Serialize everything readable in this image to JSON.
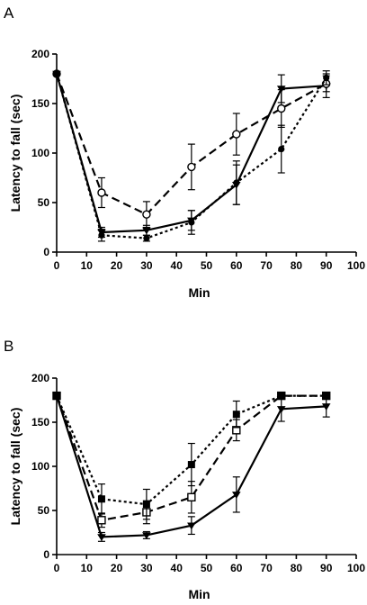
{
  "chart_data": [
    {
      "panel": "A",
      "type": "line",
      "xlabel": "Min",
      "ylabel": "Latency to fall (sec)",
      "xlim": [
        0,
        100
      ],
      "ylim": [
        0,
        200
      ],
      "xticks": [
        0,
        10,
        20,
        30,
        40,
        50,
        60,
        70,
        80,
        90,
        100
      ],
      "yticks": [
        0,
        50,
        100,
        150,
        200
      ],
      "grid": false,
      "series": [
        {
          "line_style": "solid",
          "marker": "triangle-down",
          "x": [
            0,
            15,
            30,
            45,
            60,
            75,
            90
          ],
          "y": [
            180,
            20,
            22,
            32,
            68,
            165,
            168
          ],
          "err": [
            0,
            5,
            5,
            10,
            20,
            14,
            12
          ]
        },
        {
          "line_style": "dashed",
          "marker": "circle-open",
          "x": [
            0,
            15,
            30,
            45,
            60,
            75,
            90
          ],
          "y": [
            180,
            60,
            38,
            86,
            119,
            145,
            170
          ],
          "err": [
            0,
            15,
            13,
            23,
            21,
            19,
            8
          ]
        },
        {
          "line_style": "dotted",
          "marker": "circle-filled",
          "x": [
            0,
            15,
            30,
            45,
            60,
            75,
            90
          ],
          "y": [
            180,
            17,
            14,
            30,
            70,
            104,
            176
          ],
          "err": [
            0,
            6,
            3,
            12,
            22,
            24,
            7
          ]
        }
      ]
    },
    {
      "panel": "B",
      "type": "line",
      "xlabel": "Min",
      "ylabel": "Latency to fall (sec)",
      "xlim": [
        0,
        100
      ],
      "ylim": [
        0,
        200
      ],
      "xticks": [
        0,
        10,
        20,
        30,
        40,
        50,
        60,
        70,
        80,
        90,
        100
      ],
      "yticks": [
        0,
        50,
        100,
        150,
        200
      ],
      "grid": false,
      "series": [
        {
          "line_style": "solid",
          "marker": "triangle-down",
          "x": [
            0,
            15,
            30,
            45,
            60,
            75,
            90
          ],
          "y": [
            180,
            20,
            22,
            33,
            68,
            165,
            168
          ],
          "err": [
            0,
            5,
            4,
            10,
            20,
            14,
            12
          ]
        },
        {
          "line_style": "dashed",
          "marker": "square-open",
          "x": [
            0,
            15,
            30,
            45,
            60,
            75,
            90
          ],
          "y": [
            180,
            39,
            48,
            65,
            141,
            180,
            180
          ],
          "err": [
            0,
            8,
            13,
            18,
            12,
            0,
            0
          ]
        },
        {
          "line_style": "dotted",
          "marker": "square-filled",
          "x": [
            0,
            15,
            30,
            45,
            60,
            75,
            90
          ],
          "y": [
            180,
            63,
            57,
            102,
            159,
            180,
            180
          ],
          "err": [
            0,
            17,
            17,
            24,
            15,
            0,
            0
          ]
        }
      ]
    }
  ]
}
